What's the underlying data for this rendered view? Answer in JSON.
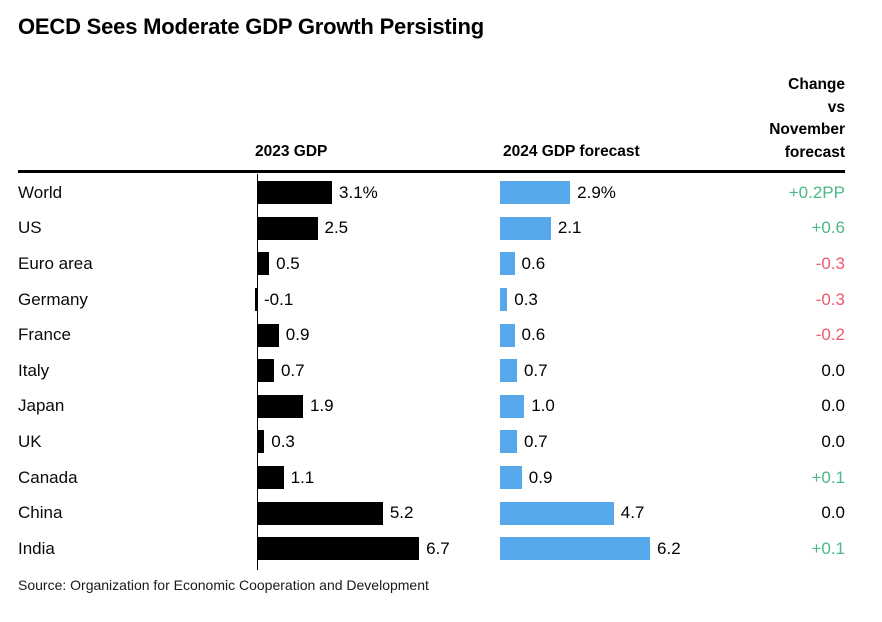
{
  "title": "OECD Sees Moderate GDP Growth Persisting",
  "headers": {
    "col_2023": "2023 GDP",
    "col_2024": "2024 GDP forecast",
    "change": "Change\nvs\nNovember\nforecast"
  },
  "source": "Source: Organization for Economic Cooperation and Development",
  "colors": {
    "bar_2023": "#000000",
    "bar_2024": "#57a8eb",
    "up": "#4bb886",
    "down": "#ec5b6d",
    "flat": "#000000"
  },
  "chart_data": {
    "type": "bar",
    "title": "OECD Sees Moderate GDP Growth Persisting",
    "orientation": "horizontal",
    "xlim": [
      0,
      7
    ],
    "grid": false,
    "categories": [
      "World",
      "US",
      "Euro area",
      "Germany",
      "France",
      "Italy",
      "Japan",
      "UK",
      "Canada",
      "China",
      "India"
    ],
    "series": [
      {
        "name": "2023 GDP",
        "values": [
          3.1,
          2.5,
          0.5,
          -0.1,
          0.9,
          0.7,
          1.9,
          0.3,
          1.1,
          5.2,
          6.7
        ]
      },
      {
        "name": "2024 GDP forecast",
        "values": [
          2.9,
          2.1,
          0.6,
          0.3,
          0.6,
          0.7,
          1.0,
          0.7,
          0.9,
          4.7,
          6.2
        ]
      },
      {
        "name": "Change vs November forecast",
        "values": [
          0.2,
          0.6,
          -0.3,
          -0.3,
          -0.2,
          0.0,
          0.0,
          0.0,
          0.1,
          0.0,
          0.1
        ]
      }
    ],
    "rows": [
      {
        "country": "World",
        "gdp2023": {
          "value": 3.1,
          "label": "3.1%"
        },
        "gdp2024": {
          "value": 2.9,
          "label": "2.9%"
        },
        "change": {
          "label": "+0.2PP",
          "direction": "up"
        }
      },
      {
        "country": "US",
        "gdp2023": {
          "value": 2.5,
          "label": "2.5"
        },
        "gdp2024": {
          "value": 2.1,
          "label": "2.1"
        },
        "change": {
          "label": "+0.6",
          "direction": "up"
        }
      },
      {
        "country": "Euro area",
        "gdp2023": {
          "value": 0.5,
          "label": "0.5"
        },
        "gdp2024": {
          "value": 0.6,
          "label": "0.6"
        },
        "change": {
          "label": "-0.3",
          "direction": "down"
        }
      },
      {
        "country": "Germany",
        "gdp2023": {
          "value": -0.1,
          "label": "-0.1"
        },
        "gdp2024": {
          "value": 0.3,
          "label": "0.3"
        },
        "change": {
          "label": "-0.3",
          "direction": "down"
        }
      },
      {
        "country": "France",
        "gdp2023": {
          "value": 0.9,
          "label": "0.9"
        },
        "gdp2024": {
          "value": 0.6,
          "label": "0.6"
        },
        "change": {
          "label": "-0.2",
          "direction": "down"
        }
      },
      {
        "country": "Italy",
        "gdp2023": {
          "value": 0.7,
          "label": "0.7"
        },
        "gdp2024": {
          "value": 0.7,
          "label": "0.7"
        },
        "change": {
          "label": "0.0",
          "direction": "flat"
        }
      },
      {
        "country": "Japan",
        "gdp2023": {
          "value": 1.9,
          "label": "1.9"
        },
        "gdp2024": {
          "value": 1.0,
          "label": "1.0"
        },
        "change": {
          "label": "0.0",
          "direction": "flat"
        }
      },
      {
        "country": "UK",
        "gdp2023": {
          "value": 0.3,
          "label": "0.3"
        },
        "gdp2024": {
          "value": 0.7,
          "label": "0.7"
        },
        "change": {
          "label": "0.0",
          "direction": "flat"
        }
      },
      {
        "country": "Canada",
        "gdp2023": {
          "value": 1.1,
          "label": "1.1"
        },
        "gdp2024": {
          "value": 0.9,
          "label": "0.9"
        },
        "change": {
          "label": "+0.1",
          "direction": "up"
        }
      },
      {
        "country": "China",
        "gdp2023": {
          "value": 5.2,
          "label": "5.2"
        },
        "gdp2024": {
          "value": 4.7,
          "label": "4.7"
        },
        "change": {
          "label": "0.0",
          "direction": "flat"
        }
      },
      {
        "country": "India",
        "gdp2023": {
          "value": 6.7,
          "label": "6.7"
        },
        "gdp2024": {
          "value": 6.2,
          "label": "6.2"
        },
        "change": {
          "label": "+0.1",
          "direction": "up"
        }
      }
    ]
  }
}
